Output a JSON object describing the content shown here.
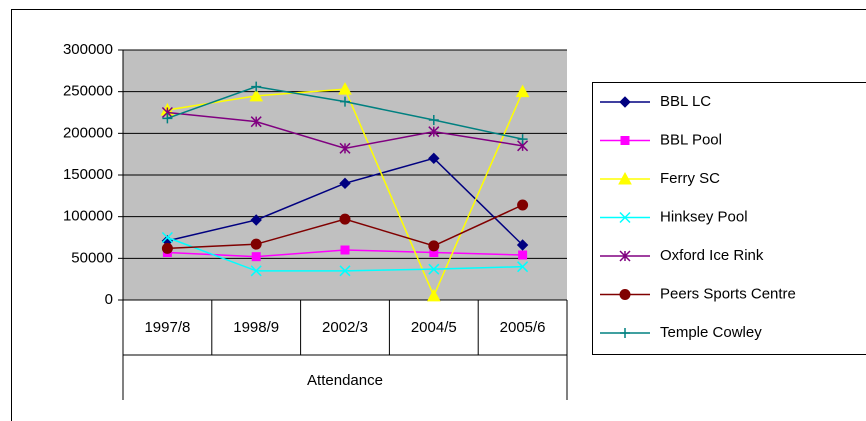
{
  "chart_data": {
    "type": "line",
    "x_label": "Attendance",
    "categories": [
      "1997/8",
      "1998/9",
      "2002/3",
      "2004/5",
      "2005/6"
    ],
    "ylim": [
      0,
      300000
    ],
    "yticks": [
      0,
      50000,
      100000,
      150000,
      200000,
      250000,
      300000
    ],
    "grid": true,
    "legend": "right",
    "series": [
      {
        "name": "BBL LC",
        "color": "#000080",
        "marker": "diamond",
        "values": [
          71000,
          96000,
          140000,
          170000,
          66000
        ]
      },
      {
        "name": "BBL Pool",
        "color": "#ff00ff",
        "marker": "square",
        "values": [
          57000,
          52000,
          60000,
          57000,
          54000
        ]
      },
      {
        "name": "Ferry SC",
        "color": "#ffff00",
        "marker": "triangle",
        "values": [
          228000,
          245000,
          253000,
          5000,
          250000
        ]
      },
      {
        "name": "Hinksey Pool",
        "color": "#00ffff",
        "marker": "x",
        "values": [
          75000,
          35000,
          35000,
          37000,
          40000
        ]
      },
      {
        "name": "Oxford Ice Rink",
        "color": "#800080",
        "marker": "asterisk",
        "values": [
          225000,
          214000,
          182000,
          202000,
          185000
        ]
      },
      {
        "name": "Peers Sports Centre",
        "color": "#800000",
        "marker": "circle",
        "values": [
          62000,
          67000,
          97000,
          65000,
          114000
        ]
      },
      {
        "name": "Temple Cowley",
        "color": "#008080",
        "marker": "plus",
        "values": [
          218000,
          256000,
          238000,
          216000,
          193000
        ]
      }
    ]
  }
}
